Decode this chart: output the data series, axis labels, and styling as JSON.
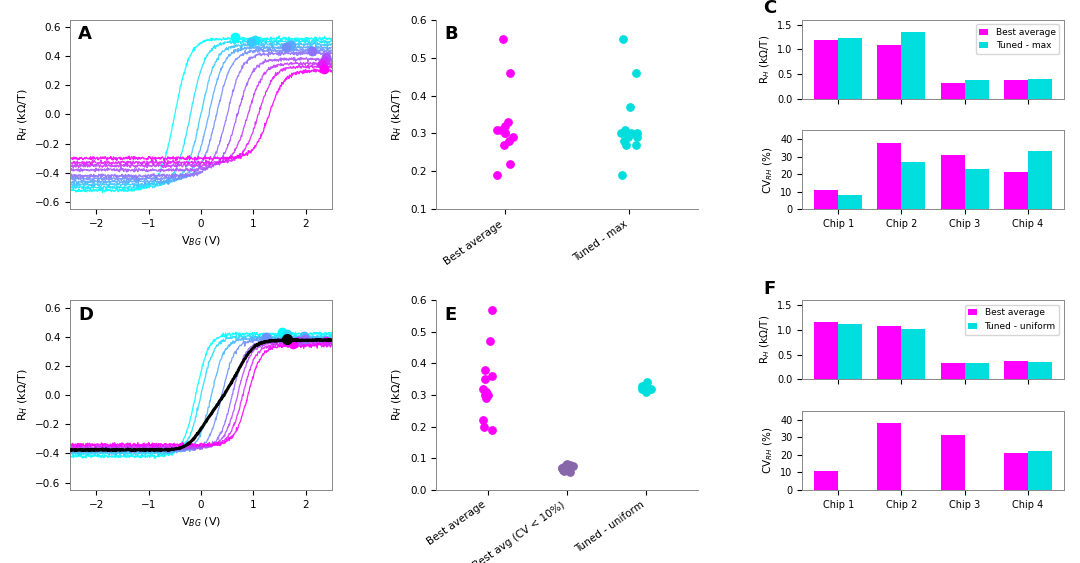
{
  "mag": "#FF00FF",
  "cya": "#00DDDD",
  "panel_C": {
    "chips": [
      "Chip 1",
      "Chip 2",
      "Chip 3",
      "Chip 4"
    ],
    "RH_best": [
      1.18,
      1.08,
      0.32,
      0.37
    ],
    "RH_tuned": [
      1.22,
      1.35,
      0.38,
      0.39
    ],
    "CV_best": [
      11,
      38,
      31,
      21
    ],
    "CV_tuned": [
      8,
      27,
      23,
      33
    ],
    "legend1": "Best average",
    "legend2": "Tuned - max",
    "RH_ylim": [
      0,
      1.6
    ],
    "CV_ylim": [
      0,
      45
    ]
  },
  "panel_F": {
    "chips": [
      "Chip 1",
      "Chip 2",
      "Chip 3",
      "Chip 4"
    ],
    "RH_best": [
      1.15,
      1.08,
      0.33,
      0.36
    ],
    "RH_tuned": [
      1.12,
      1.02,
      0.32,
      0.34
    ],
    "CV_best": [
      11,
      38,
      31,
      21
    ],
    "CV_tuned": [
      0,
      0,
      0,
      22
    ],
    "legend1": "Best average",
    "legend2": "Tuned - uniform",
    "RH_ylim": [
      0,
      1.6
    ],
    "CV_ylim": [
      0,
      45
    ]
  },
  "panel_B": {
    "best_avg_y": [
      0.19,
      0.22,
      0.27,
      0.28,
      0.29,
      0.3,
      0.3,
      0.31,
      0.31,
      0.32,
      0.33,
      0.46,
      0.55
    ],
    "tuned_max_y": [
      0.19,
      0.27,
      0.27,
      0.28,
      0.29,
      0.29,
      0.3,
      0.3,
      0.3,
      0.31,
      0.37,
      0.46,
      0.55
    ],
    "ylim": [
      0.1,
      0.6
    ]
  },
  "panel_E": {
    "best_avg_y": [
      0.19,
      0.2,
      0.22,
      0.29,
      0.3,
      0.3,
      0.31,
      0.31,
      0.32,
      0.35,
      0.36,
      0.38,
      0.47,
      0.57
    ],
    "best_cv_y": [
      0.055,
      0.06,
      0.063,
      0.068,
      0.07,
      0.072,
      0.075,
      0.078,
      0.08,
      0.082
    ],
    "tuned_y": [
      0.31,
      0.32,
      0.32,
      0.33,
      0.33,
      0.34
    ],
    "ylim": [
      0,
      0.6
    ]
  },
  "panel_A": {
    "dirac_points": [
      -0.5,
      -0.2,
      0.0,
      0.15,
      0.3,
      0.5,
      0.7,
      0.9,
      1.1,
      1.3
    ],
    "amplitudes": [
      0.52,
      0.5,
      0.48,
      0.46,
      0.44,
      0.42,
      0.38,
      0.35,
      0.33,
      0.3
    ],
    "steepness": 3.5,
    "xlim": [
      -2.5,
      2.5
    ],
    "ylim": [
      -0.65,
      0.65
    ],
    "xticks": [
      -2,
      -1,
      0,
      1,
      2
    ],
    "yticks": [
      -0.6,
      -0.4,
      -0.2,
      0.0,
      0.2,
      0.4,
      0.6
    ]
  },
  "panel_D": {
    "dirac_points": [
      -0.1,
      0.0,
      0.2,
      0.4,
      0.6,
      0.7,
      0.8,
      0.9
    ],
    "amplitudes": [
      0.42,
      0.4,
      0.39,
      0.38,
      0.37,
      0.36,
      0.35,
      0.34
    ],
    "steepness": 4.0,
    "xlim": [
      -2.5,
      2.5
    ],
    "ylim": [
      -0.65,
      0.65
    ],
    "xticks": [
      -2,
      -1,
      0,
      1,
      2
    ],
    "yticks": [
      -0.6,
      -0.4,
      -0.2,
      0.0,
      0.2,
      0.4,
      0.6
    ]
  }
}
